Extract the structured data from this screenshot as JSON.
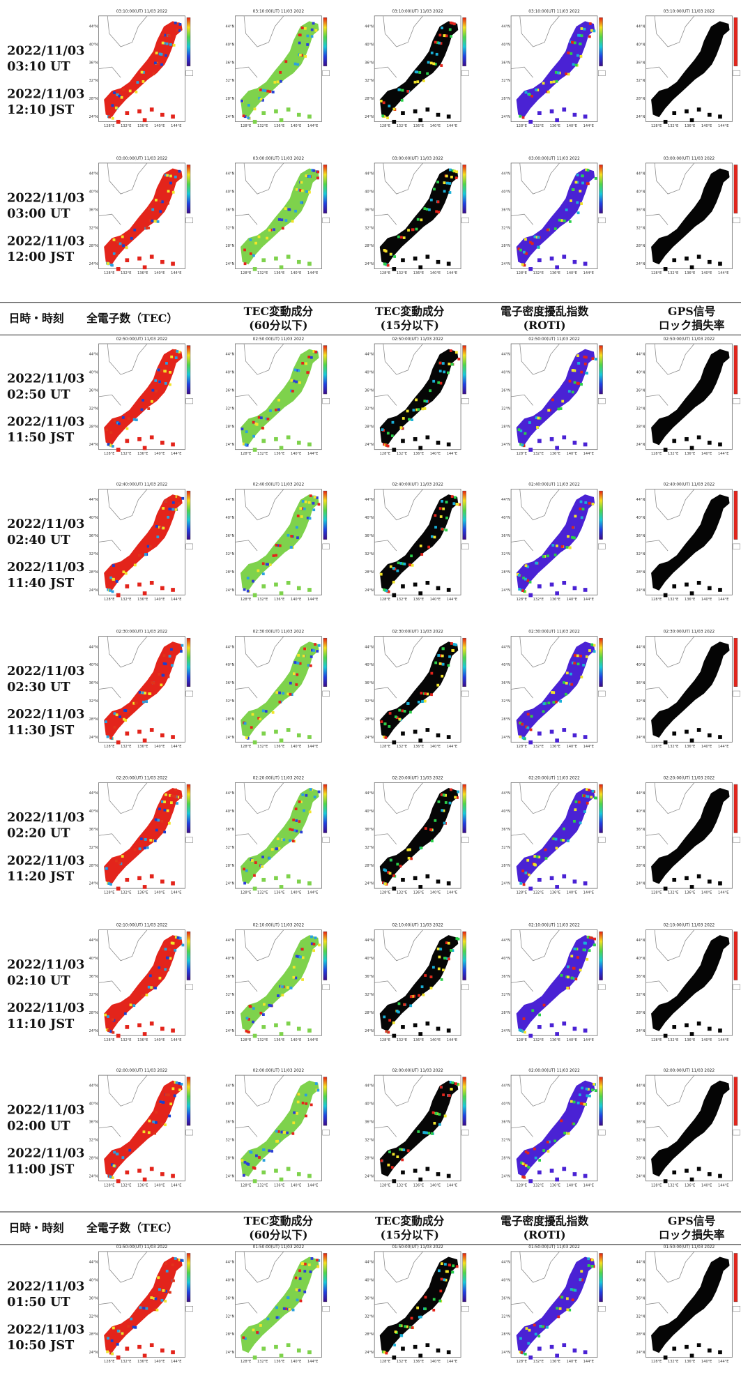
{
  "header": {
    "columns": [
      {
        "lines": [
          "日時・時刻"
        ]
      },
      {
        "lines": [
          "全電子数（TEC）"
        ]
      },
      {
        "lines": [
          "TEC変動成分",
          "(60分以下)"
        ]
      },
      {
        "lines": [
          "TEC変動成分",
          "(15分以下)"
        ]
      },
      {
        "lines": [
          "電子密度擾乱指数",
          "(ROTI)"
        ]
      },
      {
        "lines": [
          "GPS信号",
          "ロック損失率"
        ]
      }
    ]
  },
  "map_axes": {
    "lat_labels": [
      "44°N",
      "40°N",
      "36°N",
      "32°N",
      "28°N",
      "24°N"
    ],
    "lon_labels": [
      "128°E",
      "132°E",
      "136°E",
      "140°E",
      "144°E"
    ]
  },
  "rows": [
    {
      "ut_lines": [
        "2022/11/03",
        "03:10 UT"
      ],
      "jst_lines": [
        "2022/11/03",
        "12:10 JST"
      ],
      "map_title": "03:10:00(UT) 11/03 2022"
    },
    {
      "ut_lines": [
        "2022/11/03",
        "03:00 UT"
      ],
      "jst_lines": [
        "2022/11/03",
        "12:00 JST"
      ],
      "map_title": "03:00:00(UT) 11/03 2022"
    },
    {
      "ut_lines": [
        "2022/11/03",
        "02:50 UT"
      ],
      "jst_lines": [
        "2022/11/03",
        "11:50 JST"
      ],
      "map_title": "02:50:00(UT) 11/03 2022"
    },
    {
      "ut_lines": [
        "2022/11/03",
        "02:40 UT"
      ],
      "jst_lines": [
        "2022/11/03",
        "11:40 JST"
      ],
      "map_title": "02:40:00(UT) 11/03 2022"
    },
    {
      "ut_lines": [
        "2022/11/03",
        "02:30 UT"
      ],
      "jst_lines": [
        "2022/11/03",
        "11:30 JST"
      ],
      "map_title": "02:30:00(UT) 11/03 2022"
    },
    {
      "ut_lines": [
        "2022/11/03",
        "02:20 UT"
      ],
      "jst_lines": [
        "2022/11/03",
        "11:20 JST"
      ],
      "map_title": "02:20:00(UT) 11/03 2022"
    },
    {
      "ut_lines": [
        "2022/11/03",
        "02:10 UT"
      ],
      "jst_lines": [
        "2022/11/03",
        "11:10 JST"
      ],
      "map_title": "02:10:00(UT) 11/03 2022"
    },
    {
      "ut_lines": [
        "2022/11/03",
        "02:00 UT"
      ],
      "jst_lines": [
        "2022/11/03",
        "11:00 JST"
      ],
      "map_title": "02:00:00(UT) 11/03 2022"
    },
    {
      "ut_lines": [
        "2022/11/03",
        "01:50 UT"
      ],
      "jst_lines": [
        "2022/11/03",
        "10:50 JST"
      ],
      "map_title": "01:50:00(UT) 11/03 2022"
    }
  ]
}
